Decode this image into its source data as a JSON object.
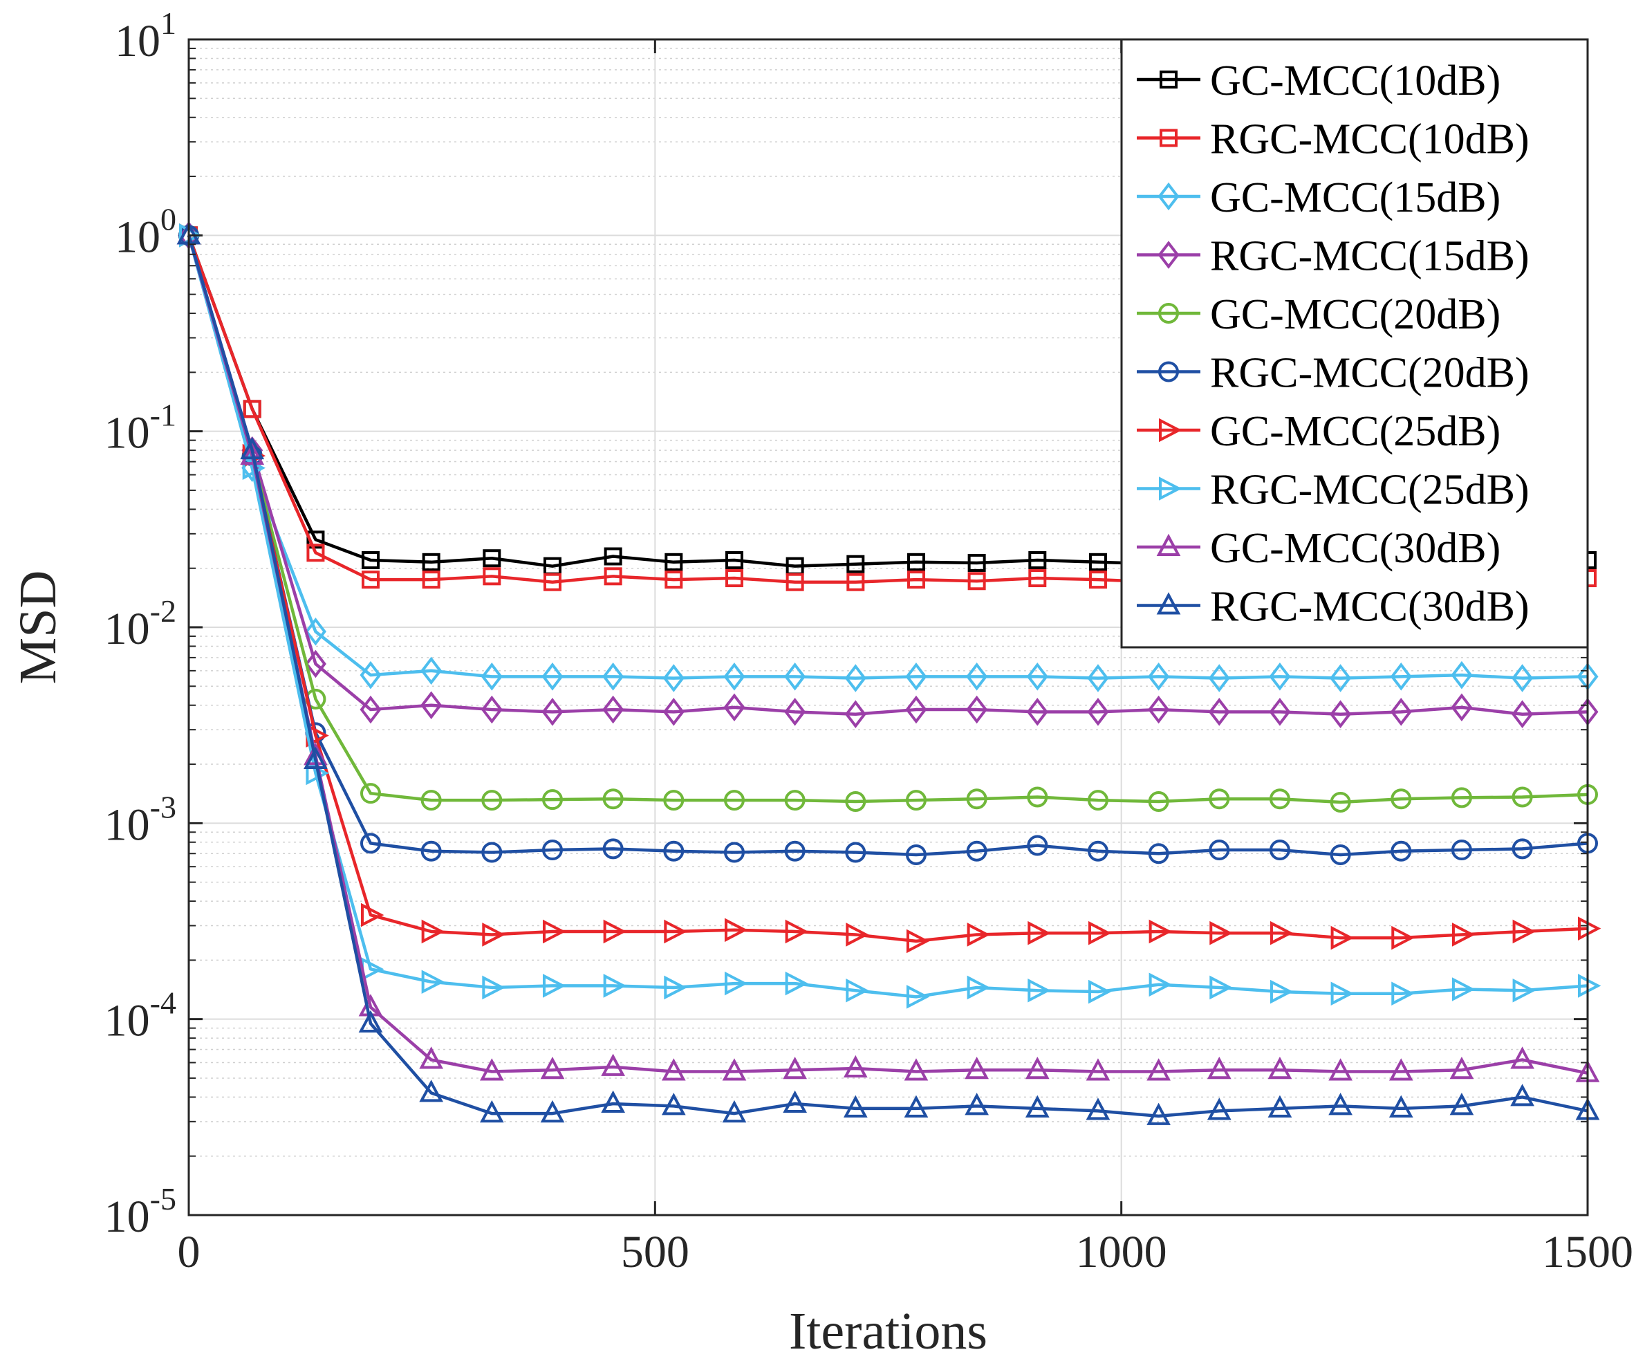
{
  "chart_data": {
    "type": "line",
    "title": "",
    "xlabel": "Iterations",
    "ylabel": "MSD",
    "xlim": [
      0,
      1500
    ],
    "ylim": [
      1e-05,
      10
    ],
    "yscale": "log",
    "grid": true,
    "legend_position": "top-right",
    "x_ticks": [
      "0",
      "500",
      "1000",
      "1500"
    ],
    "x_tick_values": [
      0,
      500,
      1000,
      1500
    ],
    "y_ticks": [
      {
        "base": "10",
        "exp": "1",
        "value": 10
      },
      {
        "base": "10",
        "exp": "0",
        "value": 1
      },
      {
        "base": "10",
        "exp": "-1",
        "value": 0.1
      },
      {
        "base": "10",
        "exp": "-2",
        "value": 0.01
      },
      {
        "base": "10",
        "exp": "-3",
        "value": 0.001
      },
      {
        "base": "10",
        "exp": "-4",
        "value": 0.0001
      },
      {
        "base": "10",
        "exp": "-5",
        "value": 1e-05
      }
    ],
    "x": [
      0,
      68,
      136,
      195,
      260,
      325,
      390,
      455,
      520,
      585,
      650,
      715,
      780,
      845,
      910,
      975,
      1040,
      1105,
      1170,
      1235,
      1300,
      1365,
      1430,
      1500
    ],
    "series": [
      {
        "name": "GC-MCC(10dB)",
        "color": "#000000",
        "marker": "square",
        "values": [
          1.0,
          0.13,
          0.028,
          0.022,
          0.0215,
          0.0225,
          0.0205,
          0.023,
          0.0215,
          0.022,
          0.0205,
          0.021,
          0.0215,
          0.0213,
          0.022,
          0.0215,
          0.021,
          0.0215,
          0.0213,
          0.0215,
          0.022,
          0.0215,
          0.0213,
          0.022
        ]
      },
      {
        "name": "RGC-MCC(10dB)",
        "color": "#E8262A",
        "marker": "square",
        "values": [
          1.0,
          0.13,
          0.024,
          0.0175,
          0.0175,
          0.0182,
          0.017,
          0.0182,
          0.0175,
          0.0178,
          0.017,
          0.017,
          0.0175,
          0.0172,
          0.0178,
          0.0175,
          0.017,
          0.0175,
          0.0172,
          0.0175,
          0.0178,
          0.0175,
          0.0172,
          0.0178
        ]
      },
      {
        "name": "GC-MCC(15dB)",
        "color": "#4DBEEE",
        "marker": "diamond",
        "values": [
          1.0,
          0.065,
          0.0095,
          0.0057,
          0.006,
          0.0056,
          0.0056,
          0.0056,
          0.0055,
          0.0056,
          0.0056,
          0.0055,
          0.0056,
          0.0056,
          0.0056,
          0.0055,
          0.0056,
          0.0055,
          0.0056,
          0.0055,
          0.0056,
          0.0057,
          0.0055,
          0.0056
        ]
      },
      {
        "name": "RGC-MCC(15dB)",
        "color": "#9B3FA8",
        "marker": "diamond",
        "values": [
          1.0,
          0.08,
          0.0065,
          0.0038,
          0.004,
          0.0038,
          0.0037,
          0.0038,
          0.0037,
          0.0039,
          0.0037,
          0.0036,
          0.0038,
          0.0038,
          0.0037,
          0.0037,
          0.0038,
          0.0037,
          0.0037,
          0.0036,
          0.0037,
          0.0039,
          0.0036,
          0.0037
        ]
      },
      {
        "name": "GC-MCC(20dB)",
        "color": "#70B83A",
        "marker": "circle",
        "values": [
          1.0,
          0.075,
          0.0043,
          0.00142,
          0.00131,
          0.00131,
          0.00132,
          0.00133,
          0.00131,
          0.00131,
          0.00131,
          0.00129,
          0.00131,
          0.00133,
          0.00136,
          0.00131,
          0.00129,
          0.00133,
          0.00133,
          0.00128,
          0.00133,
          0.00135,
          0.00136,
          0.0014
        ]
      },
      {
        "name": "RGC-MCC(20dB)",
        "color": "#1F4FA3",
        "marker": "circle",
        "values": [
          1.0,
          0.075,
          0.0029,
          0.00079,
          0.00072,
          0.00071,
          0.00073,
          0.00074,
          0.00072,
          0.00071,
          0.00072,
          0.00071,
          0.00069,
          0.00072,
          0.00077,
          0.00072,
          0.0007,
          0.00073,
          0.00073,
          0.00069,
          0.00072,
          0.00073,
          0.00074,
          0.00079
        ]
      },
      {
        "name": "GC-MCC(25dB)",
        "color": "#E8262A",
        "marker": "triangle-right",
        "values": [
          1.0,
          0.075,
          0.0028,
          0.00034,
          0.00028,
          0.00027,
          0.00028,
          0.00028,
          0.00028,
          0.000285,
          0.00028,
          0.00027,
          0.00025,
          0.00027,
          0.000275,
          0.000275,
          0.00028,
          0.000275,
          0.000275,
          0.00026,
          0.00026,
          0.00027,
          0.00028,
          0.00029
        ]
      },
      {
        "name": "RGC-MCC(25dB)",
        "color": "#4DBEEE",
        "marker": "triangle-right",
        "values": [
          1.0,
          0.065,
          0.0018,
          0.00018,
          0.000155,
          0.000145,
          0.000148,
          0.000148,
          0.000145,
          0.000152,
          0.000152,
          0.00014,
          0.00013,
          0.000145,
          0.00014,
          0.000138,
          0.00015,
          0.000145,
          0.000138,
          0.000135,
          0.000135,
          0.000142,
          0.00014,
          0.000148
        ]
      },
      {
        "name": "GC-MCC(30dB)",
        "color": "#9B3FA8",
        "marker": "triangle-up",
        "values": [
          1.0,
          0.075,
          0.0022,
          0.000115,
          6.2e-05,
          5.4e-05,
          5.5e-05,
          5.7e-05,
          5.4e-05,
          5.4e-05,
          5.5e-05,
          5.6e-05,
          5.4e-05,
          5.5e-05,
          5.5e-05,
          5.4e-05,
          5.4e-05,
          5.5e-05,
          5.5e-05,
          5.4e-05,
          5.4e-05,
          5.5e-05,
          6.2e-05,
          5.3e-05
        ]
      },
      {
        "name": "RGC-MCC(30dB)",
        "color": "#1F4FA3",
        "marker": "triangle-up",
        "values": [
          1.0,
          0.08,
          0.0021,
          9.5e-05,
          4.2e-05,
          3.3e-05,
          3.3e-05,
          3.7e-05,
          3.6e-05,
          3.3e-05,
          3.7e-05,
          3.5e-05,
          3.5e-05,
          3.6e-05,
          3.5e-05,
          3.4e-05,
          3.2e-05,
          3.4e-05,
          3.5e-05,
          3.6e-05,
          3.5e-05,
          3.6e-05,
          4e-05,
          3.4e-05
        ]
      }
    ]
  }
}
